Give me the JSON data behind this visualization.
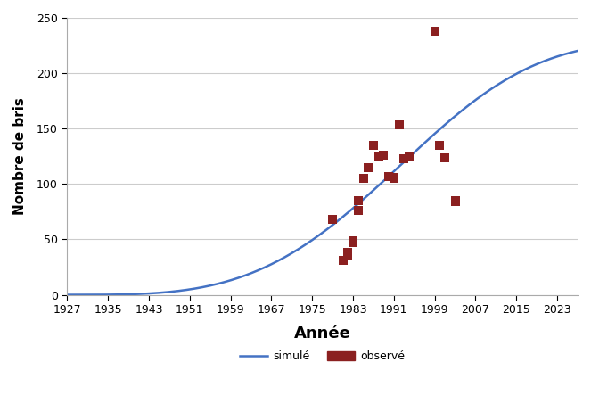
{
  "title": "",
  "xlabel": "Année",
  "ylabel": "Nombre de bris",
  "xlim": [
    1927,
    2027
  ],
  "ylim": [
    0,
    250
  ],
  "xticks": [
    1927,
    1935,
    1943,
    1951,
    1959,
    1967,
    1975,
    1983,
    1991,
    1999,
    2007,
    2015,
    2023
  ],
  "yticks": [
    0,
    50,
    100,
    150,
    200,
    250
  ],
  "curve_color": "#4472C4",
  "scatter_color": "#8B2020",
  "scatter_points": [
    [
      1979,
      68
    ],
    [
      1981,
      31
    ],
    [
      1982,
      35
    ],
    [
      1982,
      38
    ],
    [
      1983,
      47
    ],
    [
      1983,
      49
    ],
    [
      1984,
      76
    ],
    [
      1984,
      85
    ],
    [
      1985,
      105
    ],
    [
      1986,
      115
    ],
    [
      1987,
      135
    ],
    [
      1988,
      125
    ],
    [
      1989,
      126
    ],
    [
      1990,
      107
    ],
    [
      1991,
      105
    ],
    [
      1991,
      106
    ],
    [
      1992,
      153
    ],
    [
      1993,
      123
    ],
    [
      1994,
      125
    ],
    [
      1999,
      238
    ],
    [
      2000,
      135
    ],
    [
      2001,
      124
    ],
    [
      2003,
      84
    ],
    [
      2003,
      85
    ]
  ],
  "legend_simule": "simulé",
  "legend_observe": "observé",
  "background_color": "#ffffff",
  "grid_color": "#cccccc",
  "base_year": 1927,
  "end_year": 2027,
  "weibull_lambda": 72.0,
  "weibull_k": 3.5,
  "weibull_scale": 230.0
}
